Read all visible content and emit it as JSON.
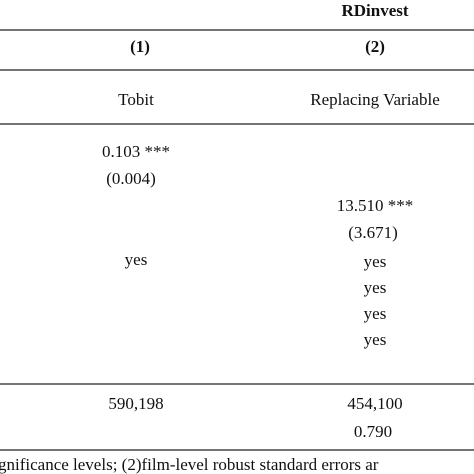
{
  "table": {
    "group_header": "RDinvest",
    "column_numbers": [
      "(1)",
      "(2)"
    ],
    "column_labels": [
      "Tobit",
      "Replacing Variable"
    ],
    "column1": [
      "0.103 ***",
      "(0.004)",
      "yes"
    ],
    "column2": [
      "13.510 ***",
      "(3.671)",
      "yes",
      "yes",
      "yes",
      "yes"
    ],
    "stats_column1": [
      "590,198"
    ],
    "stats_column2": [
      "454,100",
      "0.790"
    ]
  },
  "footnote": "gnificance levels; (2)film-level robust standard errors ar"
}
